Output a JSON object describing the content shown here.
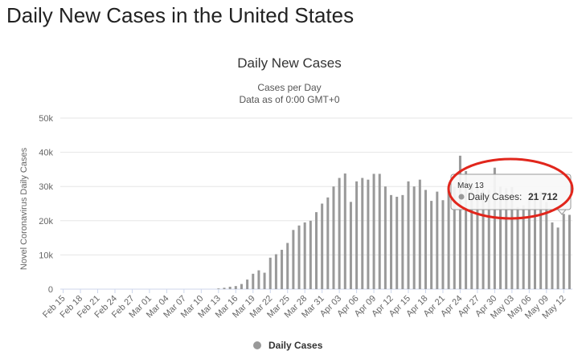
{
  "page": {
    "title": "Daily New Cases in the United States"
  },
  "chart_data": {
    "type": "bar",
    "title": "Daily New Cases",
    "subtitle_lines": [
      "Cases per Day",
      "Data as of 0:00 GMT+0"
    ],
    "ylabel": "Novel Coronavirus Daily Cases",
    "xlabel": "",
    "ylim": [
      0,
      50000
    ],
    "yticks": [
      {
        "value": 0,
        "label": "0"
      },
      {
        "value": 10000,
        "label": "10k"
      },
      {
        "value": 20000,
        "label": "20k"
      },
      {
        "value": 30000,
        "label": "30k"
      },
      {
        "value": 40000,
        "label": "40k"
      },
      {
        "value": 50000,
        "label": "50k"
      }
    ],
    "grid": true,
    "bar_color": "#999999",
    "categories": [
      "Feb 15",
      "Feb 16",
      "Feb 17",
      "Feb 18",
      "Feb 19",
      "Feb 20",
      "Feb 21",
      "Feb 22",
      "Feb 23",
      "Feb 24",
      "Feb 25",
      "Feb 26",
      "Feb 27",
      "Feb 28",
      "Feb 29",
      "Mar 01",
      "Mar 02",
      "Mar 03",
      "Mar 04",
      "Mar 05",
      "Mar 06",
      "Mar 07",
      "Mar 08",
      "Mar 09",
      "Mar 10",
      "Mar 11",
      "Mar 12",
      "Mar 13",
      "Mar 14",
      "Mar 15",
      "Mar 16",
      "Mar 17",
      "Mar 18",
      "Mar 19",
      "Mar 20",
      "Mar 21",
      "Mar 22",
      "Mar 23",
      "Mar 24",
      "Mar 25",
      "Mar 26",
      "Mar 27",
      "Mar 28",
      "Mar 29",
      "Mar 30",
      "Mar 31",
      "Apr 01",
      "Apr 02",
      "Apr 03",
      "Apr 04",
      "Apr 05",
      "Apr 06",
      "Apr 07",
      "Apr 08",
      "Apr 09",
      "Apr 10",
      "Apr 11",
      "Apr 12",
      "Apr 13",
      "Apr 14",
      "Apr 15",
      "Apr 16",
      "Apr 17",
      "Apr 18",
      "Apr 19",
      "Apr 20",
      "Apr 21",
      "Apr 22",
      "Apr 23",
      "Apr 24",
      "Apr 25",
      "Apr 26",
      "Apr 27",
      "Apr 28",
      "Apr 29",
      "Apr 30",
      "May 01",
      "May 02",
      "May 03",
      "May 04",
      "May 05",
      "May 06",
      "May 07",
      "May 08",
      "May 09",
      "May 10",
      "May 11",
      "May 12",
      "May 13"
    ],
    "tick_labels": [
      "Feb 15",
      "Feb 18",
      "Feb 21",
      "Feb 24",
      "Feb 27",
      "Mar 01",
      "Mar 04",
      "Mar 07",
      "Mar 10",
      "Mar 13",
      "Mar 16",
      "Mar 19",
      "Mar 22",
      "Mar 25",
      "Mar 28",
      "Mar 31",
      "Apr 03",
      "Apr 06",
      "Apr 09",
      "Apr 12",
      "Apr 15",
      "Apr 18",
      "Apr 21",
      "Apr 24",
      "Apr 27",
      "Apr 30",
      "May 03",
      "May 06",
      "May 09",
      "May 12"
    ],
    "series": [
      {
        "name": "Daily Cases",
        "values": [
          0,
          0,
          0,
          0,
          0,
          0,
          0,
          0,
          0,
          0,
          0,
          0,
          0,
          0,
          0,
          0,
          0,
          0,
          0,
          0,
          0,
          0,
          0,
          0,
          0,
          0,
          0,
          200,
          400,
          700,
          900,
          1500,
          2800,
          4500,
          5500,
          4800,
          9200,
          10200,
          11500,
          13500,
          17300,
          18600,
          19500,
          20000,
          22500,
          25000,
          26800,
          30000,
          32500,
          33800,
          25500,
          31500,
          32500,
          32000,
          33700,
          33700,
          30000,
          27500,
          27000,
          27500,
          31500,
          30000,
          32000,
          29000,
          25800,
          28500,
          26000,
          30000,
          30000,
          39000,
          34500,
          30500,
          29500,
          29000,
          29000,
          35500,
          30000,
          29500,
          29800,
          24000,
          24500,
          26000,
          28500,
          28500,
          25500,
          19500,
          18000,
          22000,
          21712
        ]
      }
    ],
    "tooltip": {
      "date": "May 13",
      "series_label": "Daily Cases:",
      "value_text": "21 712"
    },
    "legend": {
      "label": "Daily Cases",
      "position": "bottom-center"
    }
  }
}
